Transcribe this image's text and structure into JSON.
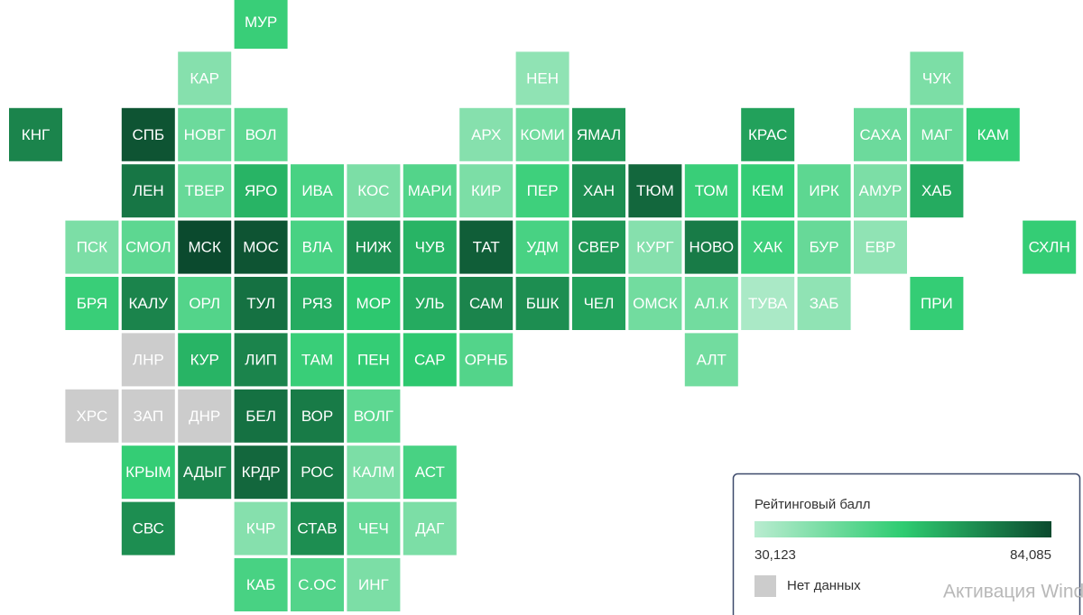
{
  "map": {
    "tiles": [
      {
        "label": "МУР",
        "value": 55000
      },
      {
        "label": "КАР",
        "value": 40000
      },
      {
        "label": "НЕН",
        "value": 38000
      },
      {
        "label": "ЧУК",
        "value": 42000
      },
      {
        "label": "КНГ",
        "value": 72000
      },
      {
        "label": "СПБ",
        "value": 82000
      },
      {
        "label": "НОВГ",
        "value": 45000
      },
      {
        "label": "ВОЛ",
        "value": 48000
      },
      {
        "label": "АРХ",
        "value": 40000
      },
      {
        "label": "КОМИ",
        "value": 44000
      },
      {
        "label": "ЯМАЛ",
        "value": 68000
      },
      {
        "label": "КРАС",
        "value": 66000
      },
      {
        "label": "САХА",
        "value": 45000
      },
      {
        "label": "МАГ",
        "value": 46000
      },
      {
        "label": "КАМ",
        "value": 56000
      },
      {
        "label": "ЛЕН",
        "value": 75000
      },
      {
        "label": "ТВЕР",
        "value": 46000
      },
      {
        "label": "ЯРО",
        "value": 62000
      },
      {
        "label": "ИВА",
        "value": 52000
      },
      {
        "label": "КОС",
        "value": 42000
      },
      {
        "label": "МАРИ",
        "value": 50000
      },
      {
        "label": "КИР",
        "value": 42000
      },
      {
        "label": "ПЕР",
        "value": 54000
      },
      {
        "label": "ХАН",
        "value": 70000
      },
      {
        "label": "ТЮМ",
        "value": 78000
      },
      {
        "label": "ТОМ",
        "value": 55000
      },
      {
        "label": "КЕМ",
        "value": 56000
      },
      {
        "label": "ИРК",
        "value": 48000
      },
      {
        "label": "АМУР",
        "value": 42000
      },
      {
        "label": "ХАБ",
        "value": 64000
      },
      {
        "label": "ПСК",
        "value": 42000
      },
      {
        "label": "СМОЛ",
        "value": 48000
      },
      {
        "label": "МСК",
        "value": 84000
      },
      {
        "label": "МОС",
        "value": 82000
      },
      {
        "label": "ВЛА",
        "value": 52000
      },
      {
        "label": "НИЖ",
        "value": 70000
      },
      {
        "label": "ЧУВ",
        "value": 62000
      },
      {
        "label": "ТАТ",
        "value": 80000
      },
      {
        "label": "УДМ",
        "value": 52000
      },
      {
        "label": "СВЕР",
        "value": 68000
      },
      {
        "label": "КУРГ",
        "value": 40000
      },
      {
        "label": "НОВО",
        "value": 74000
      },
      {
        "label": "ХАК",
        "value": 54000
      },
      {
        "label": "БУР",
        "value": 46000
      },
      {
        "label": "ЕВР",
        "value": 38000
      },
      {
        "label": "СХЛН",
        "value": 56000
      },
      {
        "label": "БРЯ",
        "value": 55000
      },
      {
        "label": "КАЛУ",
        "value": 72000
      },
      {
        "label": "ОРЛ",
        "value": 50000
      },
      {
        "label": "ТУЛ",
        "value": 76000
      },
      {
        "label": "РЯЗ",
        "value": 64000
      },
      {
        "label": "МОР",
        "value": 58000
      },
      {
        "label": "УЛЬ",
        "value": 64000
      },
      {
        "label": "САМ",
        "value": 72000
      },
      {
        "label": "БШК",
        "value": 70000
      },
      {
        "label": "ЧЕЛ",
        "value": 66000
      },
      {
        "label": "ОМСК",
        "value": 44000
      },
      {
        "label": "АЛ.К",
        "value": 44000
      },
      {
        "label": "ТУВА",
        "value": 33000
      },
      {
        "label": "ЗАБ",
        "value": 38000
      },
      {
        "label": "ПРИ",
        "value": 56000
      },
      {
        "label": "ЛНР",
        "value": null
      },
      {
        "label": "КУР",
        "value": 62000
      },
      {
        "label": "ЛИП",
        "value": 72000
      },
      {
        "label": "ТАМ",
        "value": 55000
      },
      {
        "label": "ПЕН",
        "value": 56000
      },
      {
        "label": "САР",
        "value": 58000
      },
      {
        "label": "ОРНБ",
        "value": 50000
      },
      {
        "label": "АЛТ",
        "value": 44000
      },
      {
        "label": "ХРС",
        "value": null
      },
      {
        "label": "ЗАП",
        "value": null
      },
      {
        "label": "ДНР",
        "value": null
      },
      {
        "label": "БЕЛ",
        "value": 76000
      },
      {
        "label": "ВОР",
        "value": 74000
      },
      {
        "label": "ВОЛГ",
        "value": 48000
      },
      {
        "label": "КРЫМ",
        "value": 56000
      },
      {
        "label": "АДЫГ",
        "value": 72000
      },
      {
        "label": "КРДР",
        "value": 78000
      },
      {
        "label": "РОС",
        "value": 74000
      },
      {
        "label": "КАЛМ",
        "value": 42000
      },
      {
        "label": "АСТ",
        "value": 52000
      },
      {
        "label": "СВС",
        "value": 70000
      },
      {
        "label": "КЧР",
        "value": 40000
      },
      {
        "label": "СТАВ",
        "value": 70000
      },
      {
        "label": "ЧЕЧ",
        "value": 46000
      },
      {
        "label": "ДАГ",
        "value": 42000
      },
      {
        "label": "КАБ",
        "value": 52000
      },
      {
        "label": "С.ОС",
        "value": 50000
      },
      {
        "label": "ИНГ",
        "value": 42000
      }
    ],
    "legend": {
      "title": "Рейтинговый балл",
      "min": {
        "value": 30123,
        "label": "30,123"
      },
      "max": {
        "value": 84085,
        "label": "84,085"
      },
      "colors": [
        "#b9ecd0",
        "#2ecc71",
        "#0b4a2e"
      ],
      "no_data": "Нет данных",
      "no_data_color": "#cccccc"
    },
    "watermark": "Активация Windows"
  }
}
